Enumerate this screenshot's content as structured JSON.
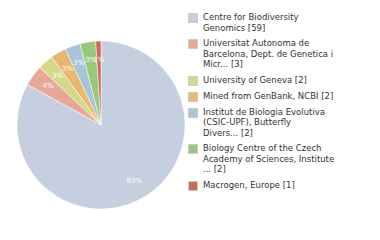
{
  "chart_data": {
    "type": "pie",
    "categories": [
      "Centre for Biodiversity\nGenomics [59]",
      "Universitat Autonoma de\nBarcelona, Dept. de Genetica i\nMicr... [3]",
      "University of Geneva [2]",
      "Mined from GenBank, NCBI [2]",
      "Institut de Biologia Evolutiva\n(CSIC-UPF), Butterfly\nDivers... [2]",
      "Biology Centre of the Czech\nAcademy of Sciences, Institute\n... [2]",
      "Macrogen, Europe [1]"
    ],
    "values": [
      83,
      4,
      3,
      3,
      3,
      3,
      1
    ],
    "value_labels": [
      "83%",
      "4%",
      "3%",
      "3%",
      "3%",
      "3%",
      "1%"
    ],
    "colors": [
      "#c5cfe0",
      "#e8a898",
      "#d4d888",
      "#e8b870",
      "#a8c4d8",
      "#98c878",
      "#cc6858"
    ],
    "data_labels": true
  }
}
